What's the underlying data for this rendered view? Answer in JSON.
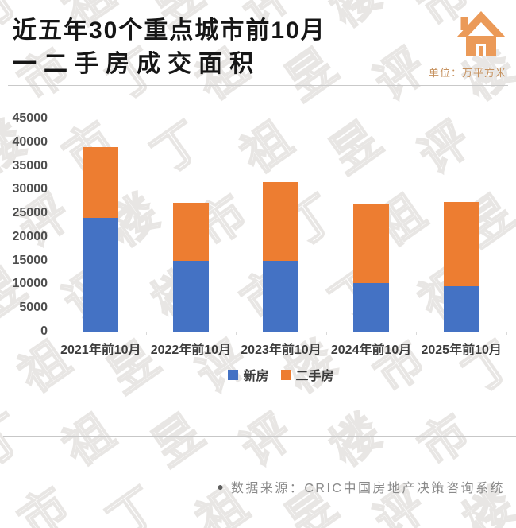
{
  "header": {
    "title_line1": "近五年30个重点城市前10月",
    "title_line2": "一二手房成交面积",
    "unit_label": "单位：万平方米"
  },
  "chart_data": {
    "type": "bar",
    "stacked": true,
    "title": "近五年30个重点城市前10月一二手房成交面积",
    "unit": "万平方米",
    "categories": [
      "2021年前10月",
      "2022年前10月",
      "2023年前10月",
      "2024年前10月",
      "2025年前10月"
    ],
    "series": [
      {
        "name": "新房",
        "color": "#4472C4",
        "values": [
          24000,
          14900,
          14900,
          10200,
          9500
        ]
      },
      {
        "name": "二手房",
        "color": "#ED7D31",
        "values": [
          15000,
          12300,
          16700,
          16900,
          17800
        ]
      }
    ],
    "stack_totals": [
      39000,
      27200,
      31600,
      27100,
      27300
    ],
    "ylim": [
      0,
      45000
    ],
    "yticks": [
      0,
      5000,
      10000,
      15000,
      20000,
      25000,
      30000,
      35000,
      40000,
      45000
    ],
    "grid": false,
    "legend_position": "bottom"
  },
  "footer": {
    "bullet": "●",
    "source_text": "数据来源：CRIC中国房地产决策咨询系统"
  },
  "watermark": {
    "text": "丁祖昱评楼市"
  },
  "colors": {
    "new_house_blue": "#4472C4",
    "second_hand_orange": "#ED7D31",
    "house_icon_orange": "#EB9A58",
    "unit_text": "#C6915E",
    "axis_line": "#D9D9D9",
    "axis_text": "#4E4E4E",
    "divider": "#C9C9C9",
    "source_text": "#8A8A8A"
  }
}
